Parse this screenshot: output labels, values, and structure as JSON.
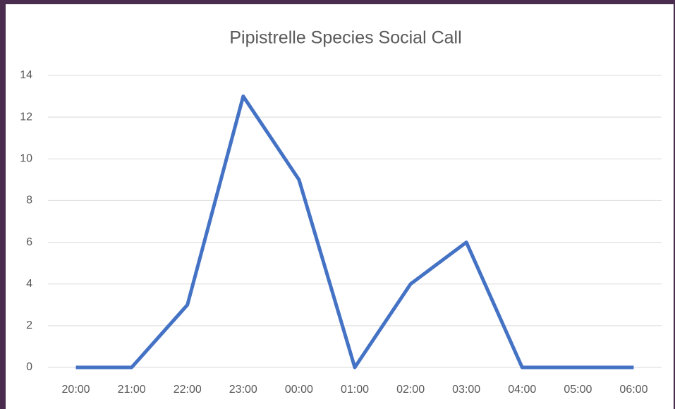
{
  "chart_data": {
    "type": "line",
    "title": "Pipistrelle Species Social Call",
    "categories": [
      "20:00",
      "21:00",
      "22:00",
      "23:00",
      "00:00",
      "01:00",
      "02:00",
      "03:00",
      "04:00",
      "05:00",
      "06:00"
    ],
    "series": [
      {
        "name": "Social Call",
        "color": "#4472c4",
        "values": [
          0,
          0,
          3,
          13,
          9,
          0,
          4,
          6,
          0,
          0,
          0
        ]
      }
    ],
    "ylim": [
      0,
      14
    ],
    "yticks": [
      0,
      2,
      4,
      6,
      8,
      10,
      12,
      14
    ],
    "grid": true,
    "legend": false
  }
}
